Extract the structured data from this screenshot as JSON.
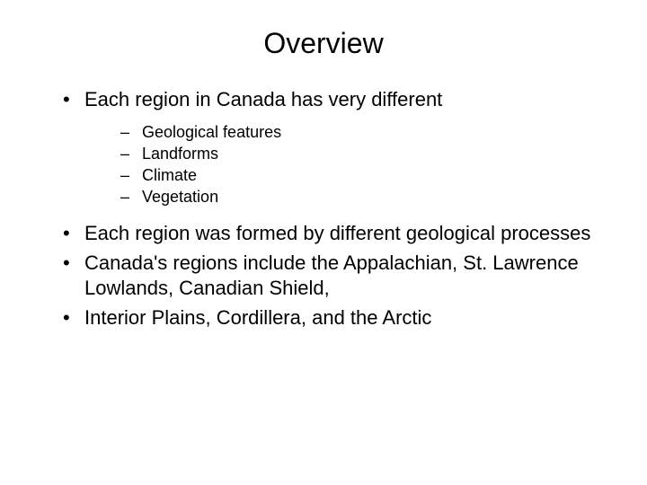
{
  "title": "Overview",
  "title_fontsize": 32,
  "level1_fontsize": 22,
  "level2_fontsize": 18,
  "text_color": "#000000",
  "background_color": "#ffffff",
  "bullets": {
    "b1": "Each region in Canada has very different",
    "b1_sub": {
      "s1": "Geological features",
      "s2": "Landforms",
      "s3": "Climate",
      "s4": "Vegetation"
    },
    "b2": "Each region was formed by different geological processes",
    "b3": "Canada's regions include the Appalachian, St. Lawrence Lowlands, Canadian Shield,",
    "b4": "Interior Plains, Cordillera, and the Arctic"
  }
}
